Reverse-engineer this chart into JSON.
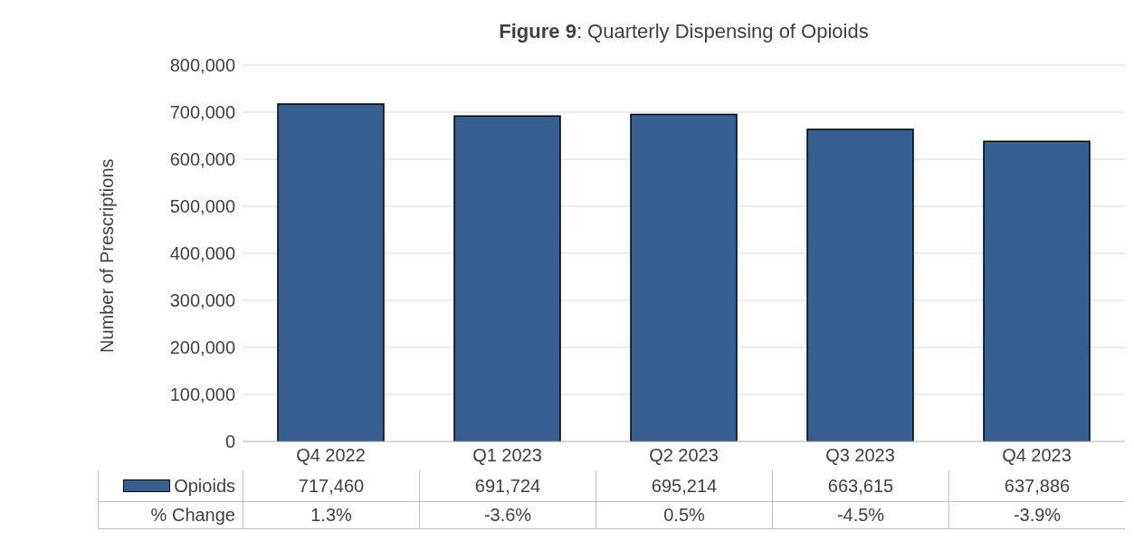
{
  "chart_data": {
    "type": "bar",
    "title": "Figure 9: Quarterly Dispensing of Opioids",
    "ylabel": "Number of Prescriptions",
    "categories": [
      "Q4 2022",
      "Q1 2023",
      "Q2 2023",
      "Q3 2023",
      "Q4 2023"
    ],
    "series": [
      {
        "name": "Opioids",
        "color": "#376092",
        "values": [
          717460,
          691724,
          695214,
          663615,
          637886
        ],
        "value_labels": [
          "717,460",
          "691,724",
          "695,214",
          "663,615",
          "637,886"
        ]
      }
    ],
    "ylim": [
      0,
      800000
    ],
    "yticks": [
      0,
      {
        "value": 100000,
        "label": "100,000"
      },
      {
        "value": 200000,
        "label": "200,000"
      },
      {
        "value": 300000,
        "label": "300,000"
      },
      {
        "value": 400000,
        "label": "400,000"
      },
      {
        "value": 500000,
        "label": "500,000"
      },
      {
        "value": 600000,
        "label": "600,000"
      },
      {
        "value": 700000,
        "label": "700,000"
      },
      {
        "value": 800000,
        "label": "800,000"
      }
    ],
    "grid": "y",
    "legend": "bottom",
    "annotations": [
      "% Change",
      "1.3%",
      "-3.6%",
      "0.5%",
      "-4.5%",
      "-3.9%"
    ]
  }
}
